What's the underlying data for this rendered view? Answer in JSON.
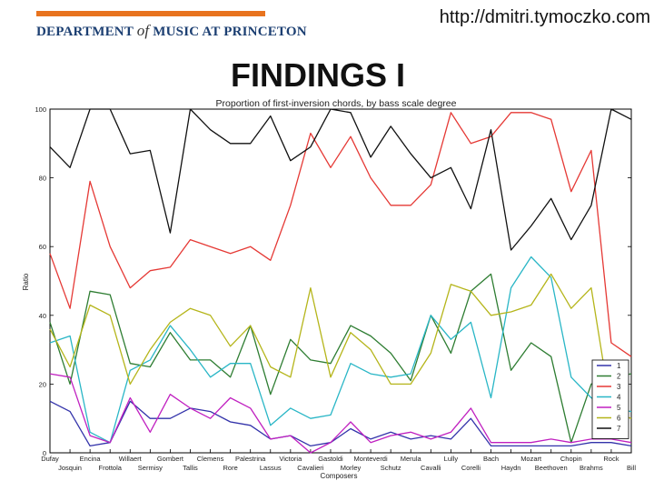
{
  "header": {
    "logo_left": "DEPARTMENT",
    "logo_of": "of",
    "logo_right": "MUSIC AT PRINCETON",
    "url": "http://dmitri.tymoczko.com",
    "heading": "FINDINGS I"
  },
  "colors": {
    "logo_bar": "#e8731e",
    "logo_text": "#1c3f72"
  },
  "chart_data": {
    "type": "line",
    "title": "Proportion of first-inversion chords, by bass scale degree",
    "xlabel": "Composers",
    "ylabel": "Ratio",
    "ylim": [
      0,
      100
    ],
    "yticks": [
      0,
      20,
      40,
      60,
      80,
      100
    ],
    "legend_position": "lower-right",
    "categories": [
      "Dufay",
      "Josquin",
      "Encina",
      "Frottola",
      "Willaert",
      "Sermisy",
      "Gombert",
      "Tallis",
      "Clemens",
      "Rore",
      "Palestrina",
      "Lassus",
      "Victoria",
      "Cavalieri",
      "Gastoldi",
      "Morley",
      "Monteverdi",
      "Schutz",
      "Merula",
      "Cavalli",
      "Lully",
      "Corelli",
      "Bach",
      "Haydn",
      "Mozart",
      "Beethoven",
      "Chopin",
      "Brahms",
      "Rock",
      "Bill"
    ],
    "series": [
      {
        "name": "1",
        "color": "#3333aa",
        "values": [
          15,
          12,
          2,
          3,
          15,
          10,
          10,
          13,
          12,
          9,
          8,
          4,
          5,
          2,
          3,
          7,
          4,
          6,
          4,
          5,
          4,
          10,
          2,
          2,
          2,
          2,
          2,
          3,
          3,
          2
        ]
      },
      {
        "name": "2",
        "color": "#2e7d32",
        "values": [
          38,
          20,
          47,
          46,
          26,
          25,
          35,
          27,
          27,
          22,
          37,
          17,
          33,
          27,
          26,
          37,
          34,
          29,
          21,
          40,
          29,
          47,
          52,
          24,
          32,
          28,
          3,
          20,
          22,
          23
        ]
      },
      {
        "name": "3",
        "color": "#e53935",
        "values": [
          58,
          42,
          79,
          60,
          48,
          53,
          54,
          62,
          60,
          58,
          60,
          56,
          72,
          93,
          83,
          92,
          80,
          72,
          72,
          78,
          99,
          90,
          92,
          99,
          99,
          97,
          76,
          88,
          32,
          28
        ]
      },
      {
        "name": "4",
        "color": "#29b6c6",
        "values": [
          32,
          34,
          6,
          3,
          24,
          27,
          37,
          30,
          22,
          26,
          26,
          8,
          13,
          10,
          11,
          26,
          23,
          22,
          23,
          40,
          33,
          38,
          16,
          48,
          57,
          51,
          22,
          16,
          13,
          12
        ]
      },
      {
        "name": "5",
        "color": "#c020c0",
        "values": [
          23,
          22,
          5,
          3,
          16,
          6,
          17,
          13,
          10,
          16,
          13,
          4,
          5,
          0,
          3,
          9,
          3,
          5,
          6,
          4,
          6,
          13,
          3,
          3,
          3,
          4,
          3,
          4,
          4,
          3
        ]
      },
      {
        "name": "6",
        "color": "#b5b51a",
        "values": [
          36,
          25,
          43,
          40,
          20,
          30,
          38,
          42,
          40,
          31,
          37,
          25,
          22,
          48,
          22,
          35,
          30,
          20,
          20,
          29,
          49,
          47,
          40,
          41,
          43,
          52,
          42,
          48,
          12,
          10
        ]
      },
      {
        "name": "7",
        "color": "#111111",
        "values": [
          89,
          83,
          100,
          100,
          87,
          88,
          64,
          100,
          94,
          90,
          90,
          98,
          85,
          89,
          100,
          99,
          86,
          95,
          87,
          80,
          83,
          71,
          94,
          59,
          66,
          74,
          62,
          72,
          100,
          97
        ]
      }
    ]
  }
}
